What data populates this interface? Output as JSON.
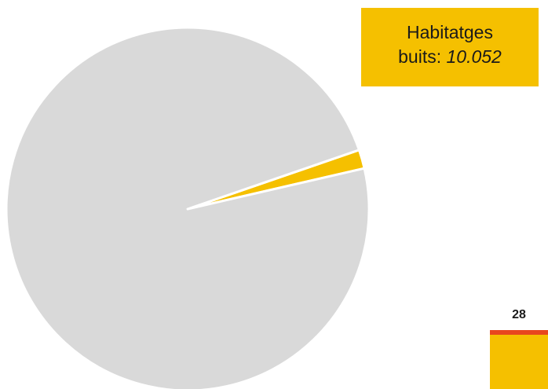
{
  "colors": {
    "background": "#ffffff",
    "occupied": "#d9d9d9",
    "empty": "#f5c000",
    "accent_red": "#e8471e"
  },
  "callout": {
    "line1": "Habitatges",
    "line2_prefix": "buits: ",
    "line2_value": "10.052"
  },
  "bar": {
    "label": "28"
  },
  "chart_data": {
    "type": "pie",
    "slices": [
      {
        "label": "Habitatges buits",
        "value": 10052,
        "color": "#f5c000"
      },
      {
        "label": "",
        "value": 590000,
        "color": "#d9d9d9"
      }
    ],
    "start_angle_deg": 19
  }
}
